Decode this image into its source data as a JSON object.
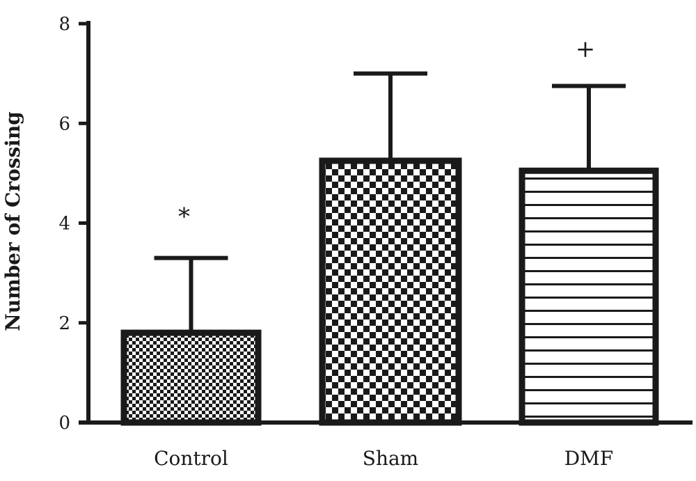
{
  "chart_data": {
    "type": "bar",
    "title": "",
    "xlabel": "",
    "ylabel": "Number of Crossing",
    "ylim": [
      0,
      8
    ],
    "yticks": [
      "0",
      "2",
      "4",
      "6",
      "8"
    ],
    "categories": [
      "Control",
      "Sham",
      "DMF"
    ],
    "values": [
      1.8,
      5.25,
      5.05
    ],
    "error_upper": [
      3.3,
      7.0,
      6.75
    ],
    "patterns": [
      "fine-checker",
      "checker",
      "horizontal-stripes"
    ],
    "annotations": [
      "*",
      "",
      "+"
    ],
    "grid": false,
    "legend": "none"
  },
  "colors": {
    "ink": "#1a1a1a",
    "fill_light": "#ffffff"
  }
}
